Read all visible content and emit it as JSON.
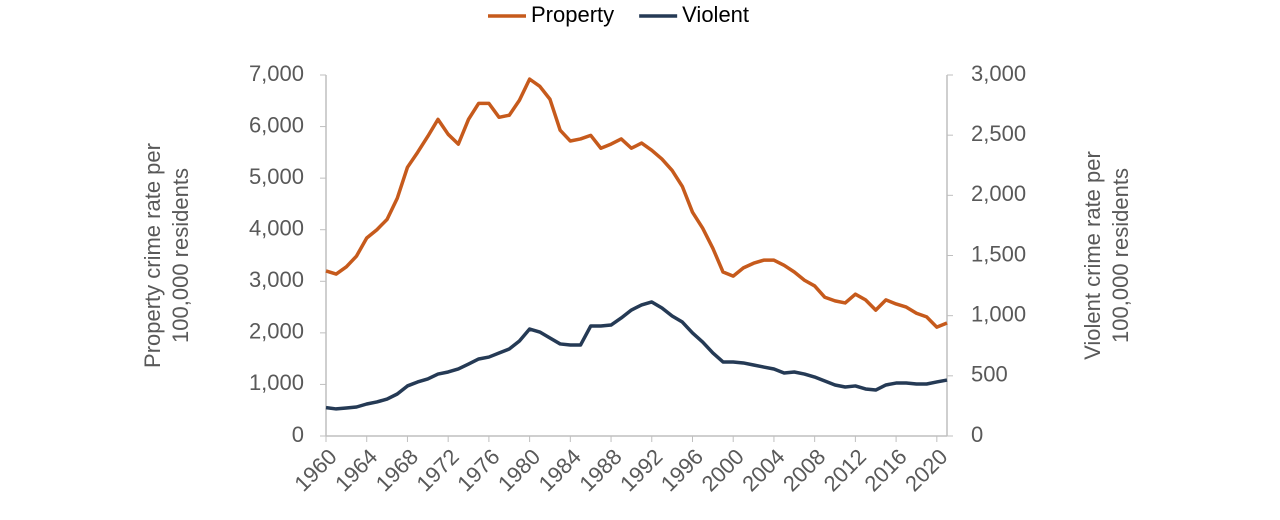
{
  "chart_data": {
    "type": "line",
    "x": [
      1960,
      1961,
      1962,
      1963,
      1964,
      1965,
      1966,
      1967,
      1968,
      1969,
      1970,
      1971,
      1972,
      1973,
      1974,
      1975,
      1976,
      1977,
      1978,
      1979,
      1980,
      1981,
      1982,
      1983,
      1984,
      1985,
      1986,
      1987,
      1988,
      1989,
      1990,
      1991,
      1992,
      1993,
      1994,
      1995,
      1996,
      1997,
      1998,
      1999,
      2000,
      2001,
      2002,
      2003,
      2004,
      2005,
      2006,
      2007,
      2008,
      2009,
      2010,
      2011,
      2012,
      2013,
      2014,
      2015,
      2016,
      2017,
      2018,
      2019,
      2020,
      2021
    ],
    "series": [
      {
        "name": "Property",
        "color": "#c65a1c",
        "axis": "y",
        "values": [
          3200,
          3140,
          3280,
          3490,
          3840,
          4000,
          4200,
          4610,
          5210,
          5500,
          5810,
          6140,
          5850,
          5660,
          6140,
          6450,
          6450,
          6180,
          6220,
          6510,
          6920,
          6780,
          6530,
          5930,
          5720,
          5760,
          5830,
          5580,
          5660,
          5760,
          5580,
          5680,
          5540,
          5370,
          5150,
          4840,
          4340,
          4030,
          3640,
          3180,
          3100,
          3260,
          3350,
          3410,
          3410,
          3310,
          3180,
          3020,
          2910,
          2690,
          2620,
          2580,
          2750,
          2640,
          2440,
          2640,
          2560,
          2500,
          2380,
          2310,
          2110,
          2190
        ]
      },
      {
        "name": "Violent",
        "color": "#253a55",
        "axis": "y2",
        "values": [
          236,
          225,
          233,
          241,
          266,
          283,
          307,
          349,
          416,
          449,
          474,
          515,
          532,
          557,
          598,
          640,
          656,
          690,
          723,
          789,
          889,
          864,
          814,
          765,
          756,
          756,
          914,
          914,
          922,
          981,
          1047,
          1089,
          1114,
          1064,
          997,
          947,
          856,
          781,
          690,
          615,
          615,
          607,
          590,
          573,
          557,
          524,
          532,
          515,
          490,
          457,
          424,
          407,
          416,
          391,
          382,
          424,
          440,
          440,
          432,
          432,
          449,
          465
        ]
      }
    ],
    "xlim": [
      1960,
      2021
    ],
    "xticks": [
      1960,
      1964,
      1968,
      1972,
      1976,
      1980,
      1984,
      1988,
      1992,
      1996,
      2000,
      2004,
      2008,
      2012,
      2016,
      2020
    ],
    "ylim": [
      0,
      7000
    ],
    "yticks": [
      0,
      {
        "value": 1000,
        "label": "1,000"
      },
      {
        "value": 2000,
        "label": "2,000"
      },
      {
        "value": 3000,
        "label": "3,000"
      },
      {
        "value": 4000,
        "label": "4,000"
      },
      {
        "value": 5000,
        "label": "5,000"
      },
      {
        "value": 6000,
        "label": "6,000"
      },
      {
        "value": 7000,
        "label": "7,000"
      }
    ],
    "y2lim": [
      0,
      3000
    ],
    "y2ticks": [
      0,
      500,
      {
        "value": 1000,
        "label": "1,000"
      },
      {
        "value": 1500,
        "label": "1,500"
      },
      {
        "value": 2000,
        "label": "2,000"
      },
      {
        "value": 2500,
        "label": "2,500"
      },
      {
        "value": 3000,
        "label": "3,000"
      }
    ],
    "y_label": [
      "Property crime rate per",
      "100,000 residents"
    ],
    "y2_label": [
      "Violent crime rate per",
      "100,000 residents"
    ],
    "legend": "top"
  }
}
